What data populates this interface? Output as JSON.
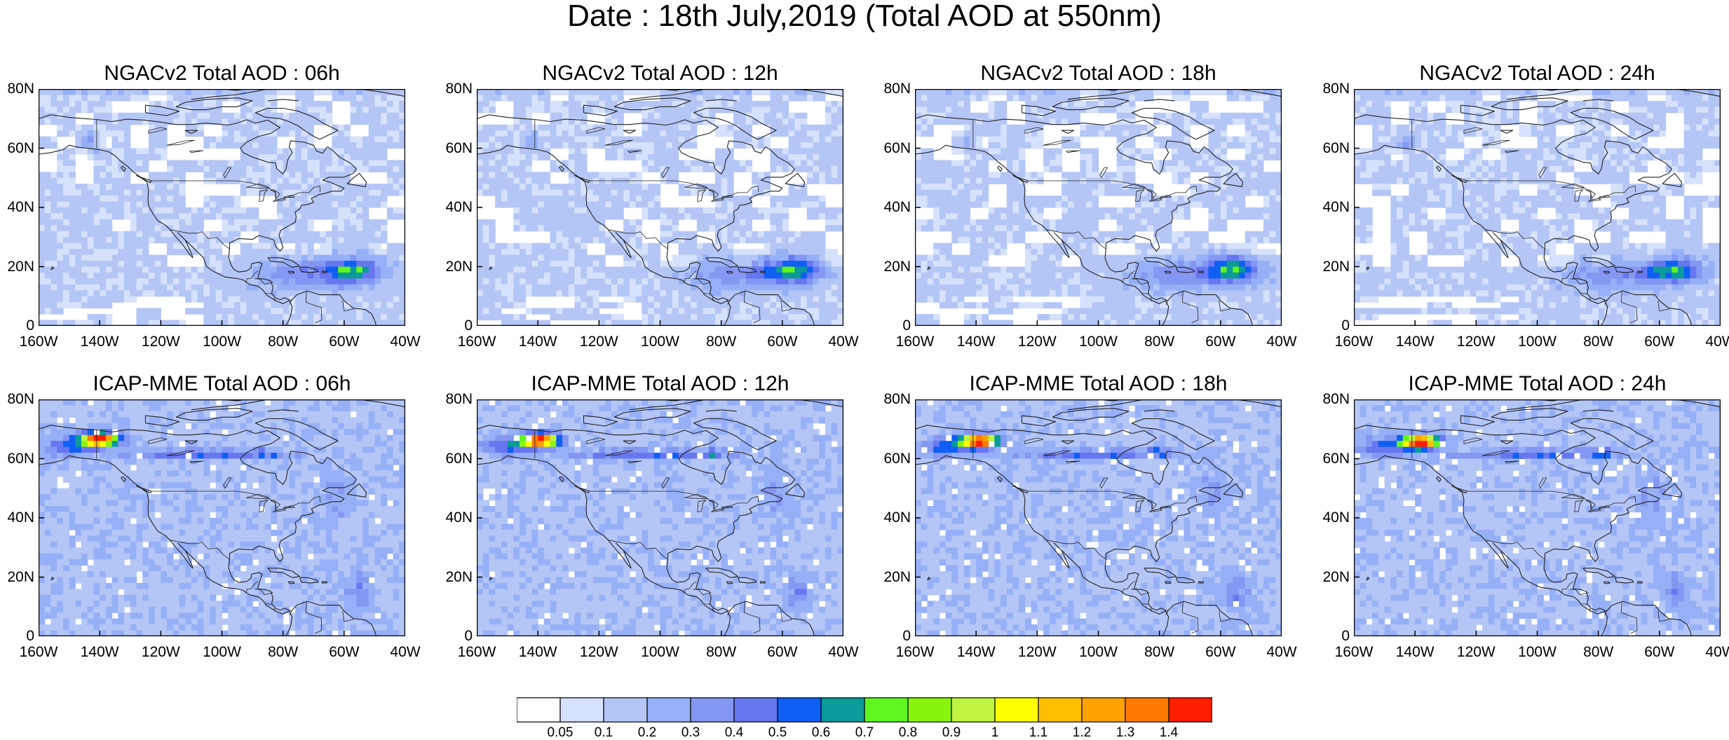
{
  "title": "Date : 18th July,2019 (Total AOD at 550nm)",
  "panels": [
    {
      "label": "NGACv2 Total AOD : 06h",
      "model": "NGACv2",
      "hour": 6
    },
    {
      "label": "NGACv2 Total AOD : 12h",
      "model": "NGACv2",
      "hour": 12
    },
    {
      "label": "NGACv2 Total AOD : 18h",
      "model": "NGACv2",
      "hour": 18
    },
    {
      "label": "NGACv2 Total AOD : 24h",
      "model": "NGACv2",
      "hour": 24
    },
    {
      "label": "ICAP-MME Total AOD : 06h",
      "model": "ICAP-MME",
      "hour": 6
    },
    {
      "label": "ICAP-MME Total AOD : 12h",
      "model": "ICAP-MME",
      "hour": 12
    },
    {
      "label": "ICAP-MME Total AOD : 18h",
      "model": "ICAP-MME",
      "hour": 18
    },
    {
      "label": "ICAP-MME Total AOD : 24h",
      "model": "ICAP-MME",
      "hour": 24
    }
  ],
  "lat_ticks": [
    "80N",
    "60N",
    "40N",
    "20N",
    "0"
  ],
  "lon_ticks": [
    "160W",
    "140W",
    "120W",
    "100W",
    "80W",
    "60W",
    "40W"
  ],
  "extent": {
    "lon": [
      -160,
      -40
    ],
    "lat": [
      0,
      80
    ]
  },
  "colorbar": {
    "labels": [
      "0.05",
      "0.1",
      "0.2",
      "0.3",
      "0.4",
      "0.5",
      "0.6",
      "0.7",
      "0.8",
      "0.9",
      "1",
      "1.1",
      "1.2",
      "1.3",
      "1.4"
    ],
    "colors": [
      "#ffffff",
      "#d6e1fb",
      "#b3c6f6",
      "#96b0f8",
      "#8497f3",
      "#6677f0",
      "#0f5ff5",
      "#0b9b9b",
      "#5ff51f",
      "#89f50f",
      "#bff541",
      "#ffff00",
      "#ffbe00",
      "#ffa100",
      "#ff7b00",
      "#ff1e00"
    ]
  }
}
